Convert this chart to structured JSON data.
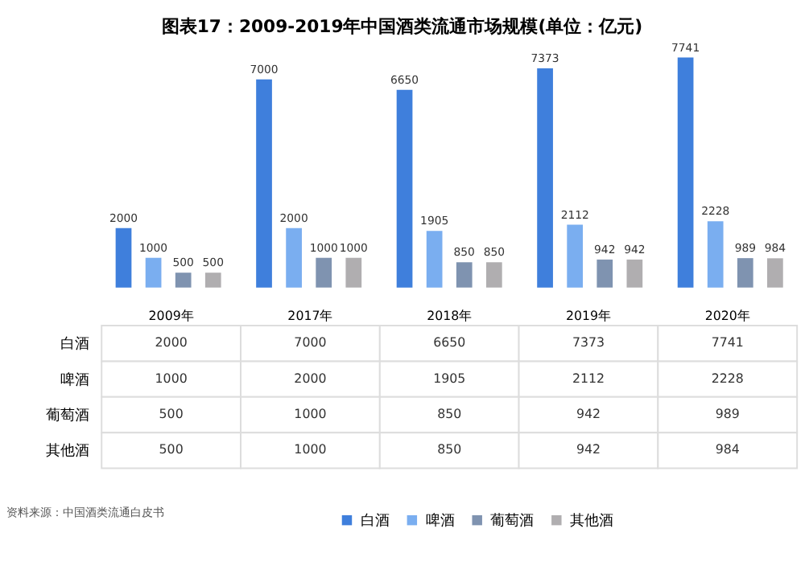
{
  "chart_data": {
    "type": "bar",
    "title": "图表17：2009-2019年中国酒类流通市场规模(单位：亿元)",
    "categories": [
      "2009年",
      "2017年",
      "2018年",
      "2019年",
      "2020年"
    ],
    "series": [
      {
        "name": "白酒",
        "color": "#3f7fdc",
        "values": [
          2000,
          7000,
          6650,
          7373,
          7741
        ]
      },
      {
        "name": "啤酒",
        "color": "#7aaef0",
        "values": [
          1000,
          2000,
          1905,
          2112,
          2228
        ]
      },
      {
        "name": "葡萄酒",
        "color": "#7f93b0",
        "values": [
          500,
          1000,
          850,
          942,
          989
        ]
      },
      {
        "name": "其他酒",
        "color": "#b0aeb0",
        "values": [
          500,
          1000,
          850,
          942,
          984
        ]
      }
    ],
    "data_labels": true,
    "legend": "bottom",
    "grid": false,
    "annotations": [
      "2000",
      "7000",
      "6650",
      "7373",
      "7741",
      "1000",
      "2000",
      "1905",
      "2112",
      "2228",
      "500",
      "1000",
      "850",
      "942",
      "989",
      "500",
      "1000",
      "850",
      "942",
      "984",
      "资料来源：中国酒类流通白皮书"
    ]
  }
}
